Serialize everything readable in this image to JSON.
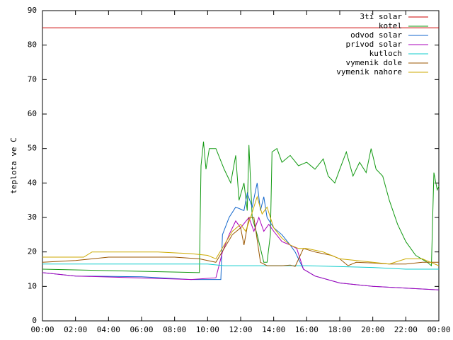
{
  "chart_data": {
    "type": "line",
    "y_label": "teplota ve C",
    "xlim": [
      0,
      24
    ],
    "xticks": [
      {
        "value": 0,
        "label": "00:00"
      },
      {
        "value": 2,
        "label": "02:00"
      },
      {
        "value": 4,
        "label": "04:00"
      },
      {
        "value": 6,
        "label": "06:00"
      },
      {
        "value": 8,
        "label": "08:00"
      },
      {
        "value": 10,
        "label": "10:00"
      },
      {
        "value": 12,
        "label": "12:00"
      },
      {
        "value": 14,
        "label": "14:00"
      },
      {
        "value": 16,
        "label": "16:00"
      },
      {
        "value": 18,
        "label": "18:00"
      },
      {
        "value": 20,
        "label": "20:00"
      },
      {
        "value": 22,
        "label": "22:00"
      },
      {
        "value": 24,
        "label": "00:00"
      }
    ],
    "ylim": [
      0,
      90
    ],
    "yticks": [
      0,
      10,
      20,
      30,
      40,
      50,
      60,
      70,
      80,
      90
    ],
    "legend": "top-right",
    "series": [
      {
        "name": "3ti solar",
        "color": "#cc0000",
        "x": [
          0,
          24
        ],
        "values": [
          85,
          85
        ]
      },
      {
        "name": "kotel",
        "color": "#119911",
        "x": [
          0,
          9.5,
          9.6,
          9.75,
          9.9,
          10.1,
          10.5,
          11,
          11.4,
          11.7,
          11.9,
          12.2,
          12.4,
          12.5,
          12.7,
          13,
          13.4,
          13.6,
          13.8,
          13.9,
          14.2,
          14.5,
          15,
          15.5,
          16,
          16.5,
          17,
          17.3,
          17.7,
          18,
          18.4,
          18.8,
          19.2,
          19.6,
          19.9,
          20.2,
          20.6,
          21,
          21.5,
          22,
          22.6,
          23.3,
          23.55,
          23.7,
          23.9,
          24
        ],
        "values": [
          15,
          14,
          45,
          52,
          44,
          50,
          50,
          44,
          40,
          48,
          35,
          40,
          32,
          51,
          30,
          25,
          17,
          17,
          25,
          49,
          50,
          46,
          48,
          45,
          46,
          44,
          47,
          42,
          40,
          44,
          49,
          42,
          46,
          43,
          50,
          44,
          42,
          35,
          28,
          23,
          19,
          17,
          16,
          43,
          38,
          39
        ]
      },
      {
        "name": "odvod solar",
        "color": "#1166cc",
        "x": [
          0,
          2,
          6,
          9,
          10,
          10.8,
          10.9,
          11.3,
          11.7,
          12.2,
          12.4,
          12.7,
          13,
          13.2,
          13.4,
          13.6,
          14,
          14.5,
          15,
          15.3,
          15.8,
          16.5,
          18,
          20,
          22,
          24
        ],
        "values": [
          14,
          13,
          12.8,
          12,
          12,
          12,
          25,
          30,
          33,
          32,
          37,
          33,
          40,
          32,
          36,
          30,
          27,
          25,
          22,
          20,
          15,
          13,
          11,
          10,
          9.5,
          9
        ]
      },
      {
        "name": "privod solar",
        "color": "#aa00bb",
        "x": [
          0,
          2,
          9,
          10.5,
          10.9,
          11.3,
          11.7,
          12,
          12.5,
          12.8,
          13.1,
          13.4,
          13.7,
          14,
          14.5,
          15,
          15.4,
          15.8,
          16.5,
          18,
          20,
          24
        ],
        "values": [
          14,
          13,
          12,
          12.5,
          20,
          25,
          29,
          27,
          30,
          26,
          30,
          26,
          28,
          26,
          23,
          22,
          21,
          15,
          13,
          11,
          10,
          9
        ]
      },
      {
        "name": "kutloch",
        "color": "#11cccc",
        "x": [
          0,
          10,
          11,
          14,
          16,
          20,
          22,
          24
        ],
        "values": [
          16.5,
          16.5,
          16,
          16,
          16,
          15.5,
          15,
          15
        ]
      },
      {
        "name": "vymenik dole",
        "color": "#995500",
        "x": [
          0,
          2,
          4,
          8,
          9.5,
          10.5,
          11,
          11.5,
          12,
          12.2,
          12.5,
          12.8,
          13.2,
          13.6,
          14.5,
          15,
          15.3,
          15.8,
          16.5,
          17.5,
          18,
          18.5,
          19,
          20,
          21,
          22,
          23,
          24
        ],
        "values": [
          17,
          17.5,
          18.5,
          18.5,
          18,
          17,
          21,
          25,
          27,
          22,
          30,
          30,
          17,
          16,
          16,
          16.2,
          15.8,
          21,
          20,
          19,
          18,
          16,
          17,
          16.8,
          16.5,
          16.5,
          17,
          17
        ]
      },
      {
        "name": "vymenik nahore",
        "color": "#ccaa00",
        "x": [
          0,
          2.5,
          3,
          7,
          9,
          10,
          10.5,
          11,
          11.5,
          12,
          12.3,
          12.6,
          13,
          13.3,
          13.6,
          14,
          14.5,
          15,
          15.5,
          16,
          17,
          18,
          19,
          20,
          21,
          22,
          23,
          23.5,
          24
        ],
        "values": [
          18.5,
          18.5,
          20,
          20,
          19.5,
          19,
          18,
          22,
          26,
          28,
          26,
          30,
          36,
          31,
          33,
          27,
          24,
          22,
          21,
          21,
          20,
          18,
          17.5,
          17,
          16.5,
          18,
          18,
          17,
          16
        ]
      }
    ]
  }
}
